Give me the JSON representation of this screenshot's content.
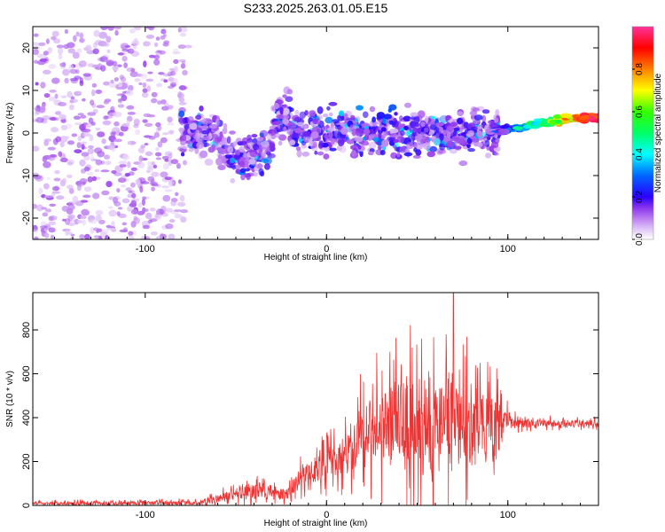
{
  "title": "S233.2025.263.01.05.E15",
  "chart_data": [
    {
      "type": "heatmap",
      "xlabel": "Height of straight line (km)",
      "ylabel": "Frequency (Hz)",
      "xlim": [
        -162,
        150
      ],
      "ylim": [
        -25,
        25
      ],
      "xticks": [
        -100,
        0,
        100
      ],
      "yticks": [
        -20,
        -10,
        0,
        10,
        20
      ],
      "colorbar": {
        "label": "Normalized spectral amplitude",
        "range": [
          0,
          1
        ],
        "ticks": [
          "0.0",
          "0.2",
          "0.4",
          "0.6",
          "0.8"
        ]
      },
      "regions": [
        {
          "x": [
            -162,
            -80
          ],
          "description": "diffuse low-amplitude noise across all frequencies"
        },
        {
          "x": [
            -80,
            95
          ],
          "freq_center": 0,
          "freq_spread": 10,
          "description": "scattered energy near 0 Hz, amplitude ~0.1-0.3"
        },
        {
          "x": [
            95,
            150
          ],
          "freq_start": 0,
          "freq_end": 3.5,
          "description": "coherent narrow tone rising to ~3.5 Hz, amplitude up to ~1.0"
        }
      ]
    },
    {
      "type": "line",
      "xlabel": "Height of straight line (km)",
      "ylabel": "SNR (10 * v/v)",
      "xlim": [
        -162,
        150
      ],
      "ylim": [
        0,
        970
      ],
      "xticks": [
        -100,
        0,
        100
      ],
      "yticks": [
        0,
        200,
        400,
        600,
        800
      ],
      "color": "#ee3333",
      "envelope": [
        {
          "x": -162,
          "base": 10,
          "spread": 15
        },
        {
          "x": -70,
          "base": 12,
          "spread": 20
        },
        {
          "x": -60,
          "base": 30,
          "spread": 40
        },
        {
          "x": -40,
          "base": 70,
          "spread": 90
        },
        {
          "x": -30,
          "base": 60,
          "spread": 70
        },
        {
          "x": -22,
          "base": 50,
          "spread": 50
        },
        {
          "x": -15,
          "base": 120,
          "spread": 100
        },
        {
          "x": 0,
          "base": 190,
          "spread": 150
        },
        {
          "x": 15,
          "base": 250,
          "spread": 220
        },
        {
          "x": 20,
          "base": 350,
          "spread": 300
        },
        {
          "x": 40,
          "base": 360,
          "spread": 450
        },
        {
          "x": 60,
          "base": 350,
          "spread": 500
        },
        {
          "x": 75,
          "base": 360,
          "spread": 430
        },
        {
          "x": 95,
          "base": 340,
          "spread": 300
        },
        {
          "x": 98,
          "base": 390,
          "spread": 100
        },
        {
          "x": 110,
          "base": 375,
          "spread": 40
        },
        {
          "x": 150,
          "base": 372,
          "spread": 35
        }
      ],
      "peak": {
        "x": 70,
        "y": 970
      }
    }
  ]
}
